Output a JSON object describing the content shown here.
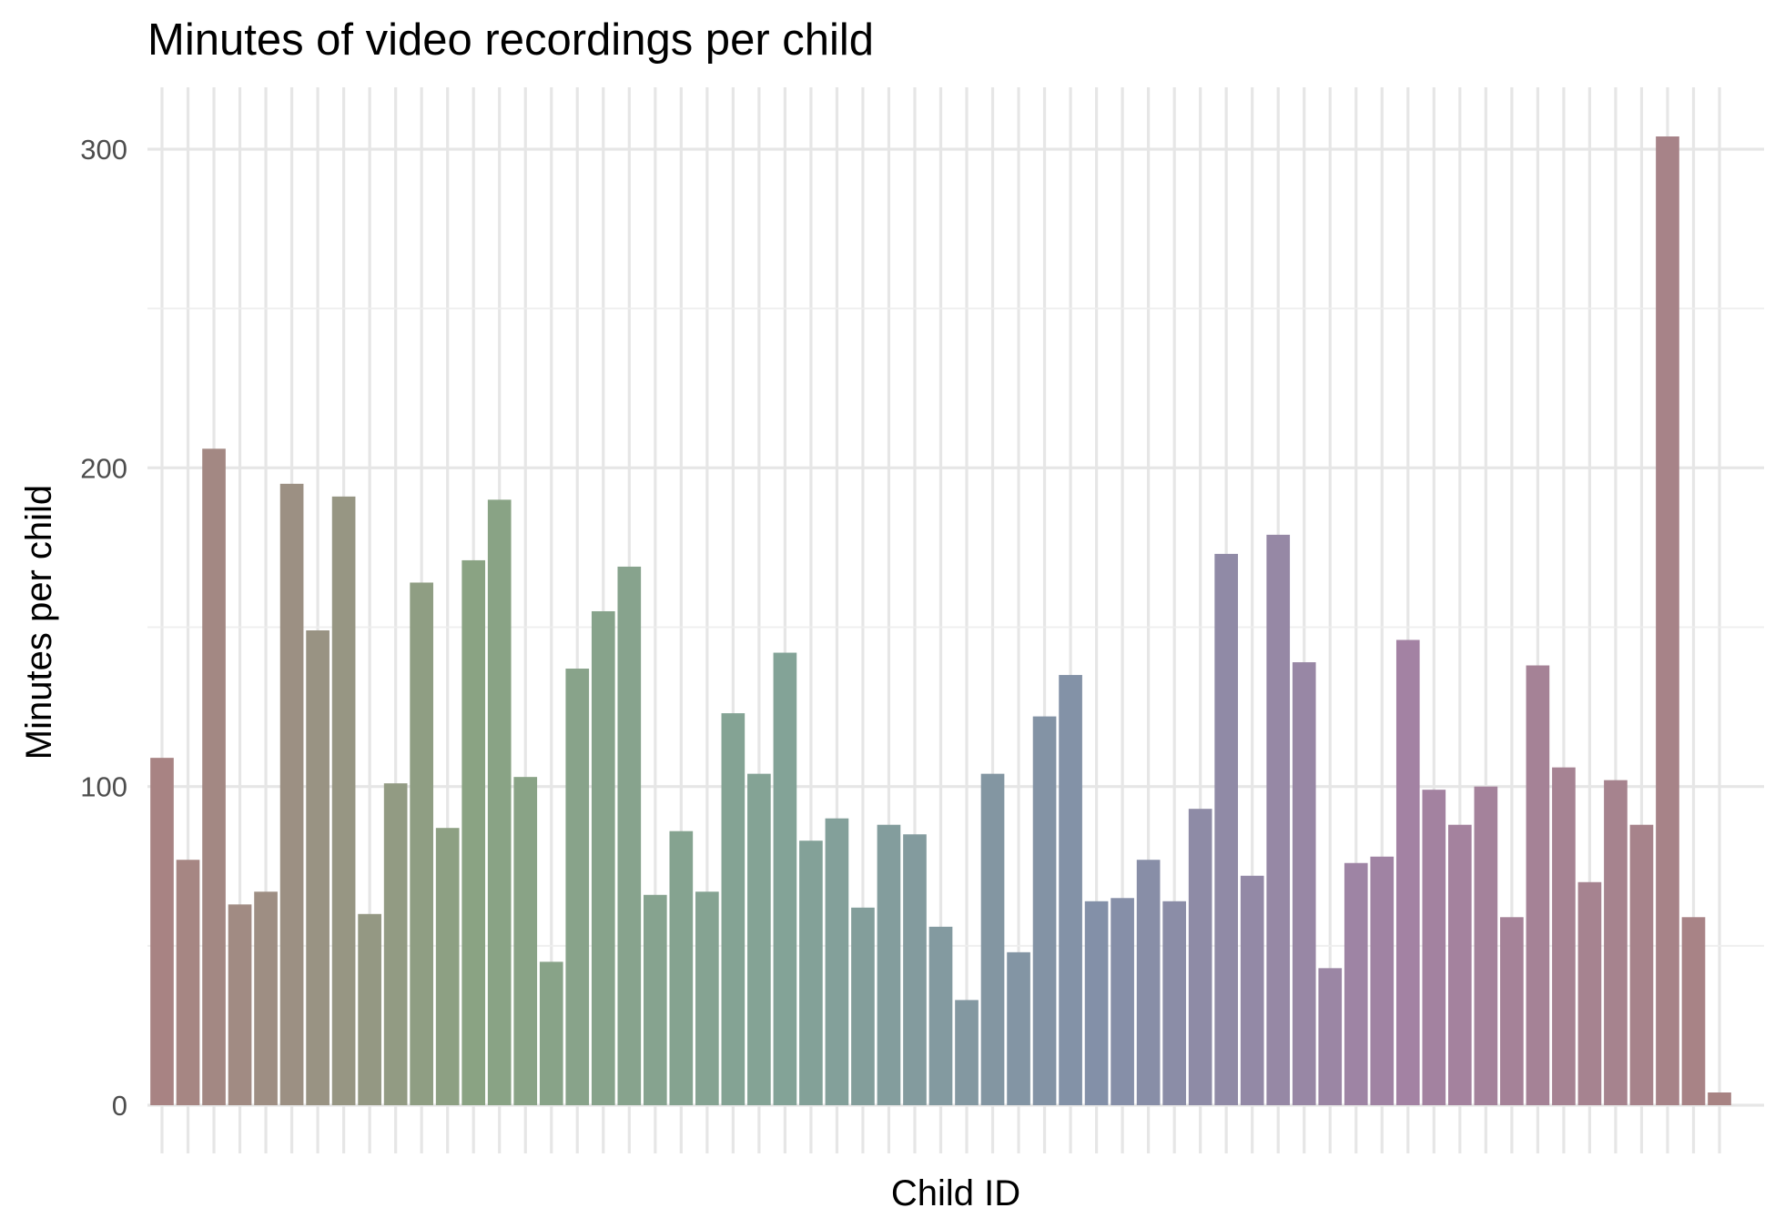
{
  "chart_data": {
    "type": "bar",
    "title": "Minutes of video recordings per child",
    "xlabel": "Child ID",
    "ylabel": "Minutes per child",
    "ylim": [
      0,
      318
    ],
    "yticks": [
      0,
      100,
      200,
      300
    ],
    "grid": true,
    "legend": "none",
    "colors": [
      "#a88383",
      "#8aa383",
      "#83a397",
      "#8390a8",
      "#a382a3",
      "#a88383"
    ],
    "values": [
      109,
      77,
      206,
      63,
      67,
      195,
      149,
      191,
      60,
      101,
      164,
      87,
      171,
      190,
      103,
      45,
      137,
      155,
      169,
      66,
      86,
      67,
      123,
      104,
      142,
      83,
      90,
      62,
      88,
      85,
      56,
      33,
      104,
      48,
      122,
      135,
      64,
      65,
      77,
      64,
      93,
      173,
      72,
      179,
      139,
      43,
      76,
      78,
      146,
      99,
      88,
      100,
      59,
      138,
      106,
      70,
      102,
      88,
      304,
      59,
      4
    ]
  }
}
